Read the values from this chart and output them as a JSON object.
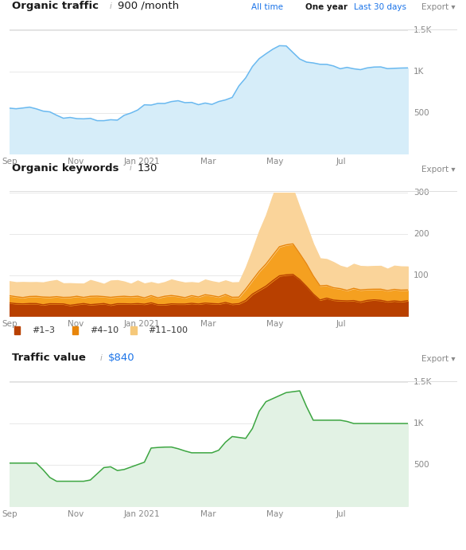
{
  "title1": "Organic traffic",
  "info1": "i",
  "subtitle1": "900 /month",
  "title2": "Organic keywords",
  "info2": "i",
  "subtitle2": "130",
  "title3": "Traffic value",
  "info3": "i",
  "subtitle3": "$840",
  "nav_labels": [
    "All time",
    "One year",
    "Last 30 days",
    "Export ▾"
  ],
  "export_label": "Export ▾",
  "x_labels": [
    "Sep",
    "Nov",
    "Jan 2021",
    "Mar",
    "May",
    "Jul",
    ""
  ],
  "bg_color": "#ffffff",
  "grid_color": "#e8e8e8",
  "traffic_line_color": "#6ab9f0",
  "traffic_fill_color": "#d6edf9",
  "kw_color_dark": "#b84000",
  "kw_color_mid": "#e8850a",
  "kw_color_light": "#f5c87a",
  "kw_fill_dark": "#b84000",
  "kw_fill_mid": "#f5a020",
  "kw_fill_light": "#fad49a",
  "value_line_color": "#3da642",
  "value_fill_color": "#e2f2e4",
  "title_color": "#1a1a1a",
  "subtitle_color": "#1a1a1a",
  "subtitle_color_value": "#1a73e8",
  "nav_color": "#1a73e8",
  "nav_active_color": "#1a1a1a",
  "export_color": "#888888",
  "legend_color": "#333333",
  "tick_color": "#888888",
  "n_points": 60
}
